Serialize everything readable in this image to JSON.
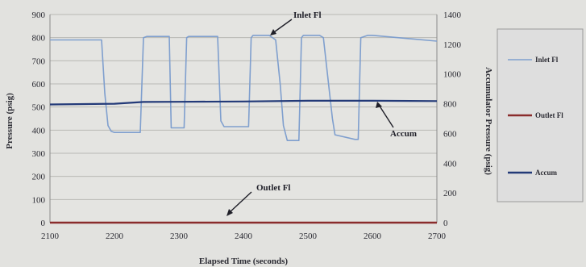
{
  "chart_data": {
    "type": "line",
    "title": "",
    "xlabel": "Elapsed Time (seconds)",
    "ylabel": "Pressure (psig)",
    "y2label": "Accumulator Pressure (psig)",
    "xlim": [
      2100,
      2700
    ],
    "ylim": [
      0,
      900
    ],
    "y2lim": [
      0,
      1400
    ],
    "xticks": [
      "2100",
      "2200",
      "2300",
      "2400",
      "2500",
      "2600",
      "2700"
    ],
    "yticks": [
      "0",
      "100",
      "200",
      "300",
      "400",
      "500",
      "600",
      "700",
      "800",
      "900"
    ],
    "y2ticks": [
      "0",
      "200",
      "400",
      "600",
      "800",
      "1000",
      "1200",
      "1400"
    ],
    "grid": true,
    "legend_position": "right",
    "series": [
      {
        "name": "Inlet Fl",
        "axis": "left",
        "color": "#7f9fce",
        "x": [
          2100,
          2180,
          2185,
          2190,
          2195,
          2200,
          2240,
          2245,
          2250,
          2285,
          2288,
          2292,
          2308,
          2312,
          2315,
          2360,
          2365,
          2370,
          2375,
          2408,
          2412,
          2415,
          2440,
          2450,
          2457,
          2462,
          2468,
          2486,
          2490,
          2493,
          2518,
          2524,
          2532,
          2538,
          2542,
          2573,
          2578,
          2582,
          2593,
          2596,
          2600,
          2700
        ],
        "y": [
          790,
          790,
          560,
          420,
          395,
          390,
          390,
          800,
          805,
          805,
          410,
          410,
          410,
          800,
          805,
          805,
          440,
          415,
          415,
          415,
          800,
          810,
          810,
          790,
          600,
          420,
          355,
          355,
          800,
          810,
          810,
          800,
          600,
          450,
          380,
          360,
          360,
          800,
          810,
          810,
          810,
          785
        ]
      },
      {
        "name": "Outlet Fl",
        "axis": "left",
        "color": "#8a2c2c",
        "x": [
          2100,
          2700
        ],
        "y": [
          0,
          0
        ]
      },
      {
        "name": "Accum",
        "axis": "right",
        "color": "#233a78",
        "x": [
          2100,
          2200,
          2245,
          2300,
          2400,
          2500,
          2600,
          2700
        ],
        "y": [
          795,
          800,
          812,
          813,
          815,
          820,
          820,
          818
        ]
      }
    ],
    "annotations": [
      {
        "text": "Inlet Fl",
        "x": 2410,
        "y": 808
      },
      {
        "text": "Accum",
        "x": 2585,
        "y": 800,
        "axis": "right"
      },
      {
        "text": "Outlet Fl",
        "x": 2360,
        "y": 4
      }
    ]
  }
}
